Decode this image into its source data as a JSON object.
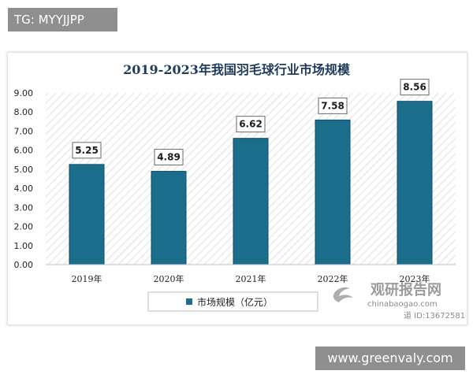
{
  "top_tag": "TG: MYYJJPP",
  "bottom_tag": "www.greenvaly.com",
  "colors": {
    "bar": "#1b6d8c",
    "bar_edge": "#0f4f69",
    "title": "#1f3b5a",
    "tag_bg": "#8f8f8f"
  },
  "watermark": {
    "brand": "观研报告网",
    "site": "chinabaogao.com",
    "id_line": "道 ID:13672581"
  },
  "chart_data": {
    "type": "bar",
    "title": "2019-2023年我国羽毛球行业市场规模",
    "categories": [
      "2019年",
      "2020年",
      "2021年",
      "2022年",
      "2023年"
    ],
    "series": [
      {
        "name": "市场规模（亿元）",
        "values": [
          5.25,
          4.89,
          6.62,
          7.58,
          8.56
        ]
      }
    ],
    "data_labels": [
      "5.25",
      "4.89",
      "6.62",
      "7.58",
      "8.56"
    ],
    "yticks": [
      "0.00",
      "1.00",
      "2.00",
      "3.00",
      "4.00",
      "5.00",
      "6.00",
      "7.00",
      "8.00",
      "9.00"
    ],
    "ylim": [
      0,
      9
    ],
    "grid": false,
    "legend_position": "bottom"
  }
}
